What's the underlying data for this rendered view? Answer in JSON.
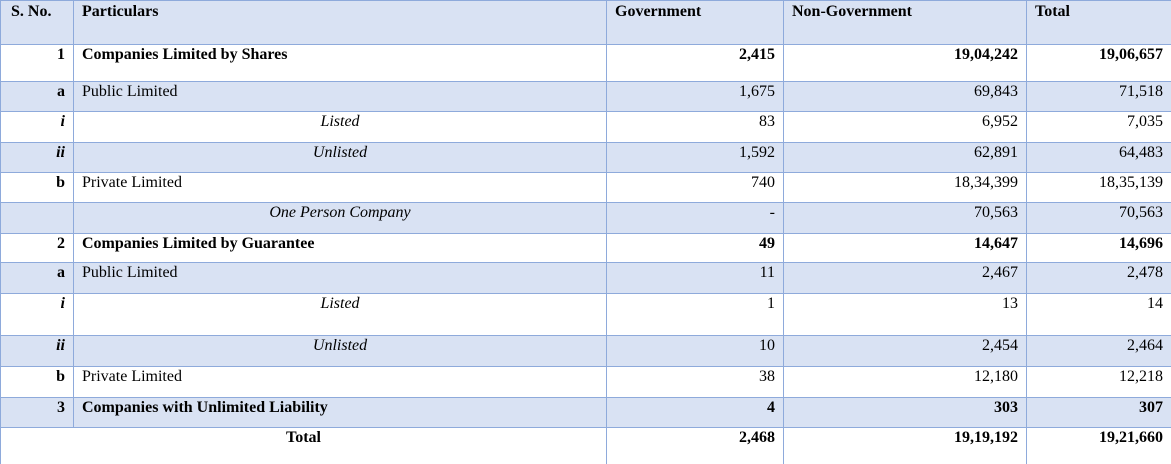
{
  "table": {
    "headers": {
      "sno": "S. No.",
      "particulars": "Particulars",
      "government": "Government",
      "non_government": "Non-Government",
      "total": "Total"
    },
    "rows": [
      {
        "sno": "1",
        "particulars": "Companies Limited by Shares",
        "government": "2,415",
        "non_government": "19,04,242",
        "total": "19,06,657"
      },
      {
        "sno": "a",
        "particulars": "Public Limited",
        "government": "1,675",
        "non_government": "69,843",
        "total": "71,518"
      },
      {
        "sno": "i",
        "particulars": "Listed",
        "government": "83",
        "non_government": "6,952",
        "total": "7,035"
      },
      {
        "sno": "ii",
        "particulars": "Unlisted",
        "government": "1,592",
        "non_government": "62,891",
        "total": "64,483"
      },
      {
        "sno": "b",
        "particulars": "Private Limited",
        "government": "740",
        "non_government": "18,34,399",
        "total": "18,35,139"
      },
      {
        "sno": "",
        "particulars": "One Person Company",
        "government": "-",
        "non_government": "70,563",
        "total": "70,563"
      },
      {
        "sno": "2",
        "particulars": "Companies Limited by Guarantee",
        "government": "49",
        "non_government": "14,647",
        "total": "14,696"
      },
      {
        "sno": "a",
        "particulars": "Public Limited",
        "government": "11",
        "non_government": "2,467",
        "total": "2,478"
      },
      {
        "sno": "i",
        "particulars": "Listed",
        "government": "1",
        "non_government": "13",
        "total": "14"
      },
      {
        "sno": "ii",
        "particulars": "Unlisted",
        "government": "10",
        "non_government": "2,454",
        "total": "2,464"
      },
      {
        "sno": "b",
        "particulars": "Private Limited",
        "government": "38",
        "non_government": "12,180",
        "total": "12,218"
      },
      {
        "sno": "3",
        "particulars": "Companies with Unlimited Liability",
        "government": "4",
        "non_government": "303",
        "total": "307"
      }
    ],
    "total_row": {
      "label": "Total",
      "government": "2,468",
      "non_government": "19,19,192",
      "total": "19,21,660"
    }
  }
}
